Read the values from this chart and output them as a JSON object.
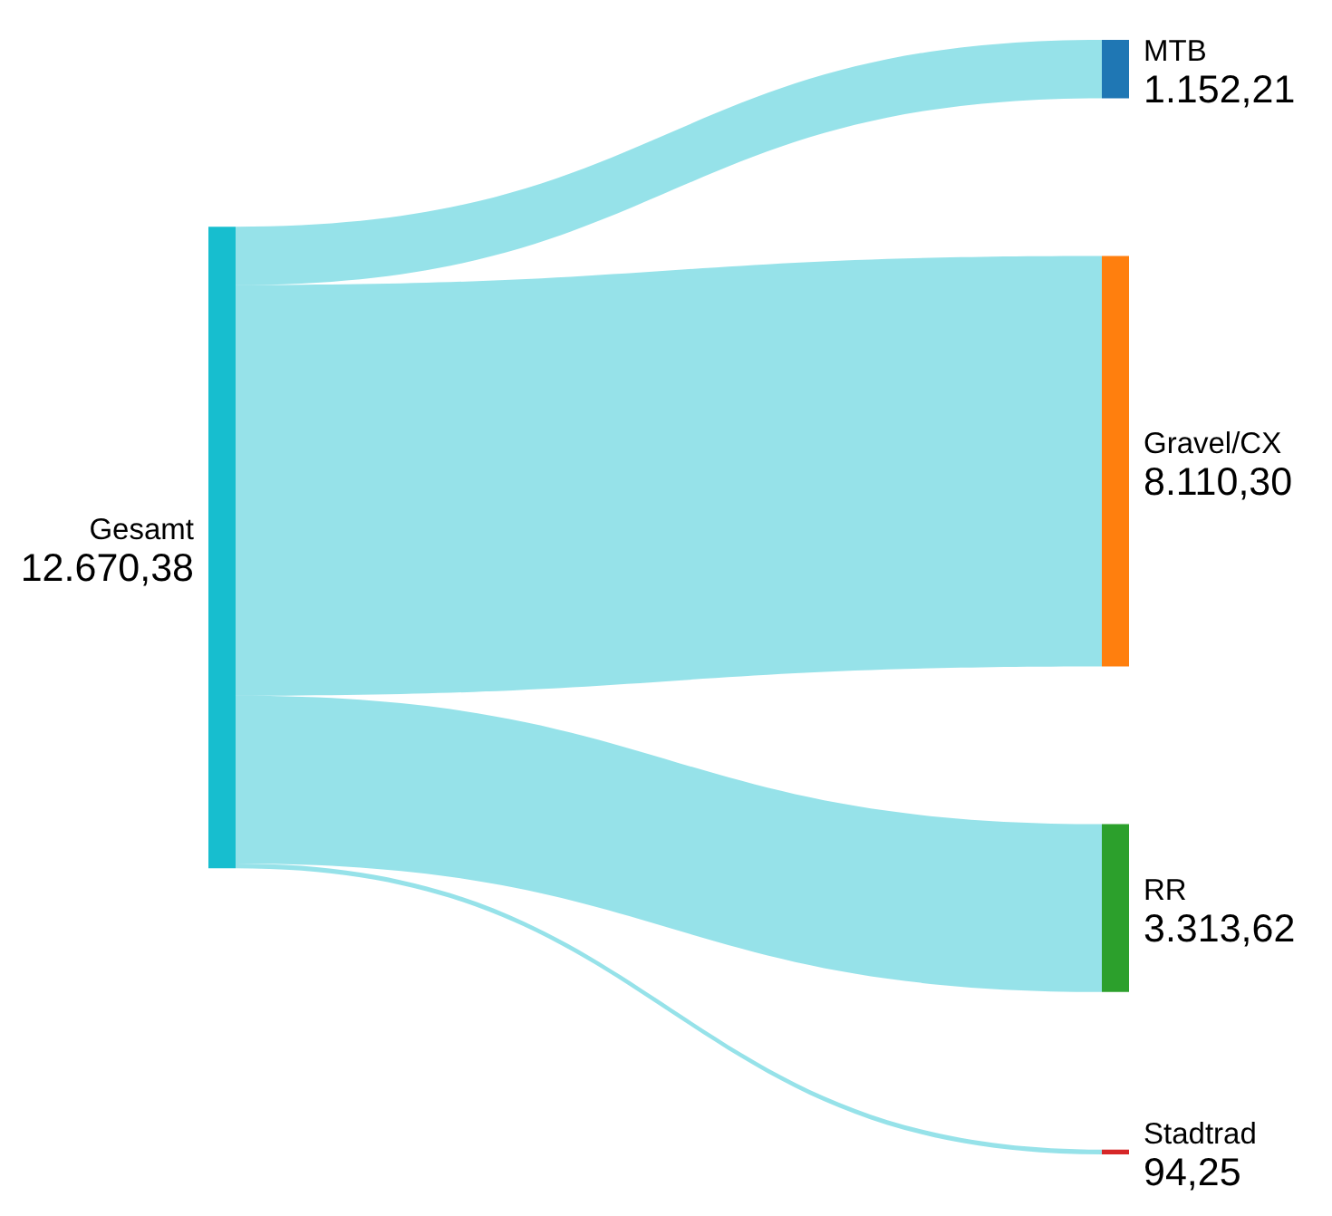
{
  "chart_data": {
    "type": "other",
    "categories": [
      "Gesamt",
      "MTB",
      "Gravel/CX",
      "RR",
      "Stadtrad"
    ],
    "values": [
      12670.38,
      1152.21,
      8110.3,
      3313.62,
      94.25
    ],
    "colors": [
      "#17becf",
      "#1f77b4",
      "#ff7f0e",
      "#2ca02c",
      "#d62728"
    ],
    "value_labels": [
      "12.670,38",
      "1.152,21",
      "8.110,30",
      "3.313,62",
      "94,25"
    ]
  }
}
